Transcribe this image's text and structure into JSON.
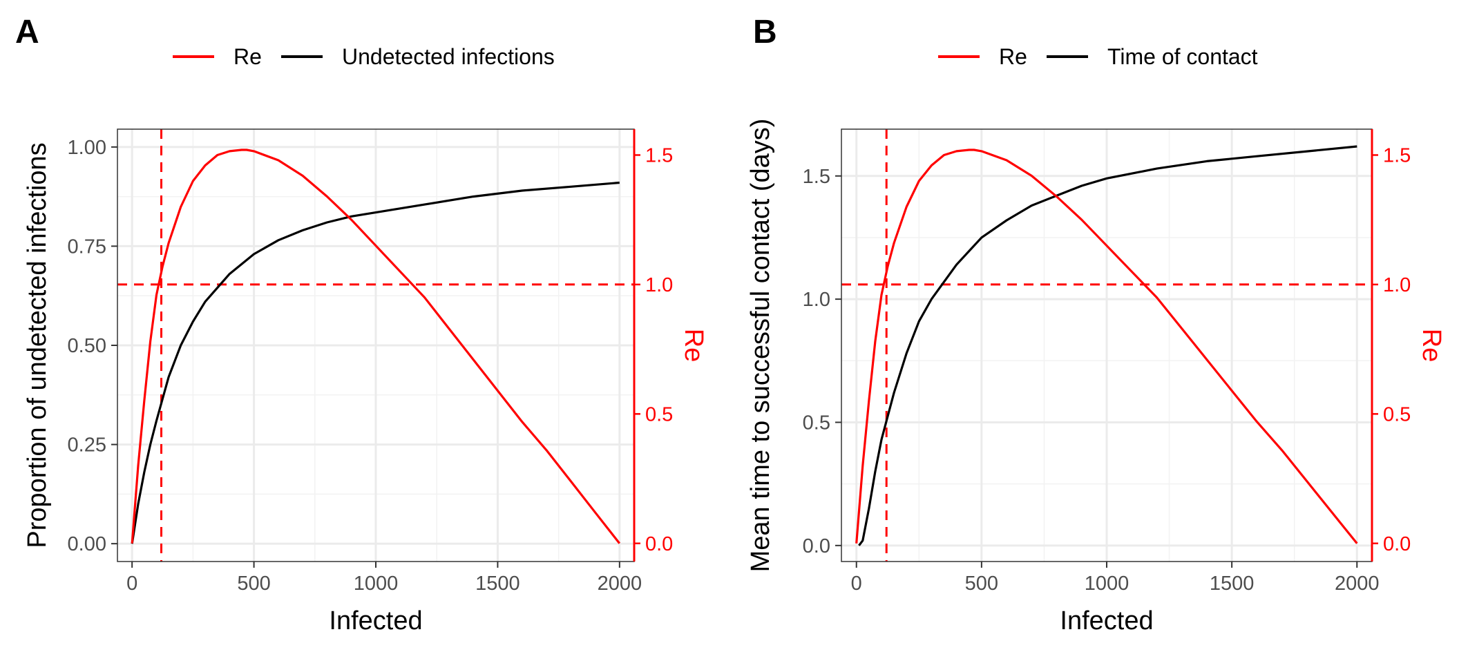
{
  "chart_data": [
    {
      "type": "line",
      "panel": "A",
      "legend": [
        {
          "name": "Re",
          "color": "#ff0000"
        },
        {
          "name": "Undetected infections",
          "color": "#000000"
        }
      ],
      "legend_position": "top",
      "xlabel": "Infected",
      "ylabel": "Proportion of undetected infections",
      "y2label": "Re",
      "xlim": [
        -60,
        2060
      ],
      "ylim": [
        -0.045,
        1.045
      ],
      "y2lim": [
        -0.07,
        1.6
      ],
      "xticks": [
        "0",
        "500",
        "1000",
        "1500",
        "2000"
      ],
      "xtick_values": [
        0,
        500,
        1000,
        1500,
        2000
      ],
      "yticks": [
        "0.00",
        "0.25",
        "0.50",
        "0.75",
        "1.00"
      ],
      "ytick_values": [
        0,
        0.25,
        0.5,
        0.75,
        1.0
      ],
      "y2ticks": [
        "0.0",
        "0.5",
        "1.0",
        "1.5"
      ],
      "y2tick_values": [
        0,
        0.5,
        1.0,
        1.5
      ],
      "grid": true,
      "vline_x": 120,
      "hline_y2": 1.0,
      "series": [
        {
          "name": "Undetected infections",
          "axis": "left",
          "color": "#000000",
          "x": [
            0,
            25,
            50,
            75,
            100,
            150,
            200,
            250,
            300,
            400,
            500,
            600,
            700,
            800,
            900,
            1000,
            1200,
            1400,
            1600,
            1800,
            2000
          ],
          "y": [
            0.0,
            0.1,
            0.18,
            0.25,
            0.31,
            0.42,
            0.5,
            0.56,
            0.61,
            0.68,
            0.73,
            0.765,
            0.79,
            0.81,
            0.825,
            0.835,
            0.855,
            0.875,
            0.89,
            0.9,
            0.91
          ]
        },
        {
          "name": "Re",
          "axis": "right",
          "color": "#ff0000",
          "x": [
            0,
            25,
            50,
            75,
            100,
            125,
            150,
            200,
            250,
            300,
            350,
            400,
            450,
            470,
            500,
            600,
            700,
            800,
            900,
            1000,
            1100,
            1200,
            1300,
            1400,
            1500,
            1600,
            1700,
            1800,
            1900,
            2000
          ],
          "y": [
            0.0,
            0.3,
            0.55,
            0.78,
            0.96,
            1.07,
            1.16,
            1.3,
            1.4,
            1.46,
            1.5,
            1.515,
            1.52,
            1.52,
            1.515,
            1.48,
            1.42,
            1.34,
            1.25,
            1.15,
            1.05,
            0.95,
            0.83,
            0.71,
            0.59,
            0.47,
            0.36,
            0.24,
            0.12,
            0.0
          ]
        }
      ]
    },
    {
      "type": "line",
      "panel": "B",
      "legend": [
        {
          "name": "Re",
          "color": "#ff0000"
        },
        {
          "name": "Time of contact",
          "color": "#000000"
        }
      ],
      "legend_position": "top",
      "xlabel": "Infected",
      "ylabel": "Mean time to successful contact (days)",
      "y2label": "Re",
      "xlim": [
        -60,
        2060
      ],
      "ylim": [
        -0.065,
        1.69
      ],
      "y2lim": [
        -0.07,
        1.6
      ],
      "xticks": [
        "0",
        "500",
        "1000",
        "1500",
        "2000"
      ],
      "xtick_values": [
        0,
        500,
        1000,
        1500,
        2000
      ],
      "yticks": [
        "0.0",
        "0.5",
        "1.0",
        "1.5"
      ],
      "ytick_values": [
        0,
        0.5,
        1.0,
        1.5
      ],
      "y2ticks": [
        "0.0",
        "0.5",
        "1.0",
        "1.5"
      ],
      "y2tick_values": [
        0,
        0.5,
        1.0,
        1.5
      ],
      "grid": true,
      "vline_x": 120,
      "hline_y2": 1.0,
      "series": [
        {
          "name": "Time of contact",
          "axis": "left",
          "color": "#000000",
          "x": [
            10,
            25,
            50,
            75,
            100,
            150,
            200,
            250,
            300,
            400,
            500,
            600,
            700,
            800,
            900,
            1000,
            1200,
            1400,
            1600,
            1800,
            2000
          ],
          "y": [
            0.0,
            0.02,
            0.15,
            0.3,
            0.43,
            0.62,
            0.78,
            0.91,
            1.0,
            1.14,
            1.25,
            1.32,
            1.38,
            1.42,
            1.46,
            1.49,
            1.53,
            1.56,
            1.58,
            1.6,
            1.62
          ]
        },
        {
          "name": "Re",
          "axis": "right",
          "color": "#ff0000",
          "x": [
            0,
            25,
            50,
            75,
            100,
            125,
            150,
            200,
            250,
            300,
            350,
            400,
            450,
            470,
            500,
            600,
            700,
            800,
            900,
            1000,
            1100,
            1200,
            1300,
            1400,
            1500,
            1600,
            1700,
            1800,
            1900,
            2000
          ],
          "y": [
            0.0,
            0.3,
            0.55,
            0.78,
            0.96,
            1.07,
            1.16,
            1.3,
            1.4,
            1.46,
            1.5,
            1.515,
            1.52,
            1.52,
            1.515,
            1.48,
            1.42,
            1.34,
            1.25,
            1.15,
            1.05,
            0.95,
            0.83,
            0.71,
            0.59,
            0.47,
            0.36,
            0.24,
            0.12,
            0.0
          ]
        }
      ]
    }
  ]
}
